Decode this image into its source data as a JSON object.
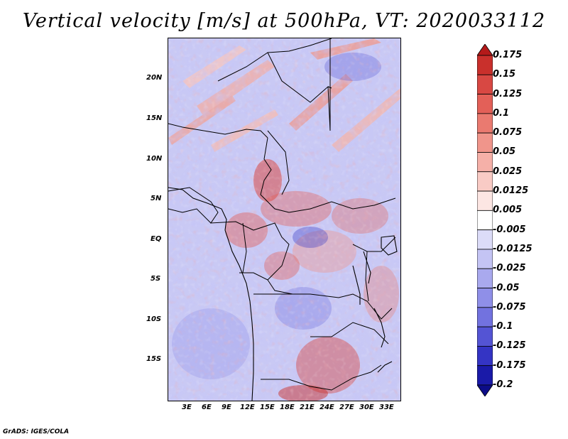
{
  "title": "Vertical velocity [m/s] at 500hPa, VT: 2020033112",
  "credit": "GrADS: IGES/COLA",
  "axes": {
    "lat_labels": [
      "20N",
      "15N",
      "10N",
      "5N",
      "EQ",
      "5S",
      "10S",
      "15S"
    ],
    "lon_labels": [
      "3E",
      "6E",
      "9E",
      "12E",
      "15E",
      "18E",
      "21E",
      "24E",
      "27E",
      "30E",
      "33E"
    ]
  },
  "colorbar": {
    "levels": [
      "0.175",
      "0.15",
      "0.125",
      "0.1",
      "0.075",
      "0.05",
      "0.025",
      "0.0125",
      "0.005",
      "-0.005",
      "-0.0125",
      "-0.025",
      "-0.05",
      "-0.075",
      "-0.1",
      "-0.125",
      "-0.175",
      "-0.2"
    ],
    "colors": [
      "#b41a1a",
      "#c9302c",
      "#d84843",
      "#e36058",
      "#ea7a70",
      "#f0958b",
      "#f5b0a8",
      "#f9cbc5",
      "#fce6e3",
      "#ffffff",
      "#dcdcf8",
      "#c4c4f4",
      "#a9a9ee",
      "#8f8fe8",
      "#7272df",
      "#5454d4",
      "#3434c4",
      "#1a1aa8",
      "#0c0c88"
    ]
  }
}
